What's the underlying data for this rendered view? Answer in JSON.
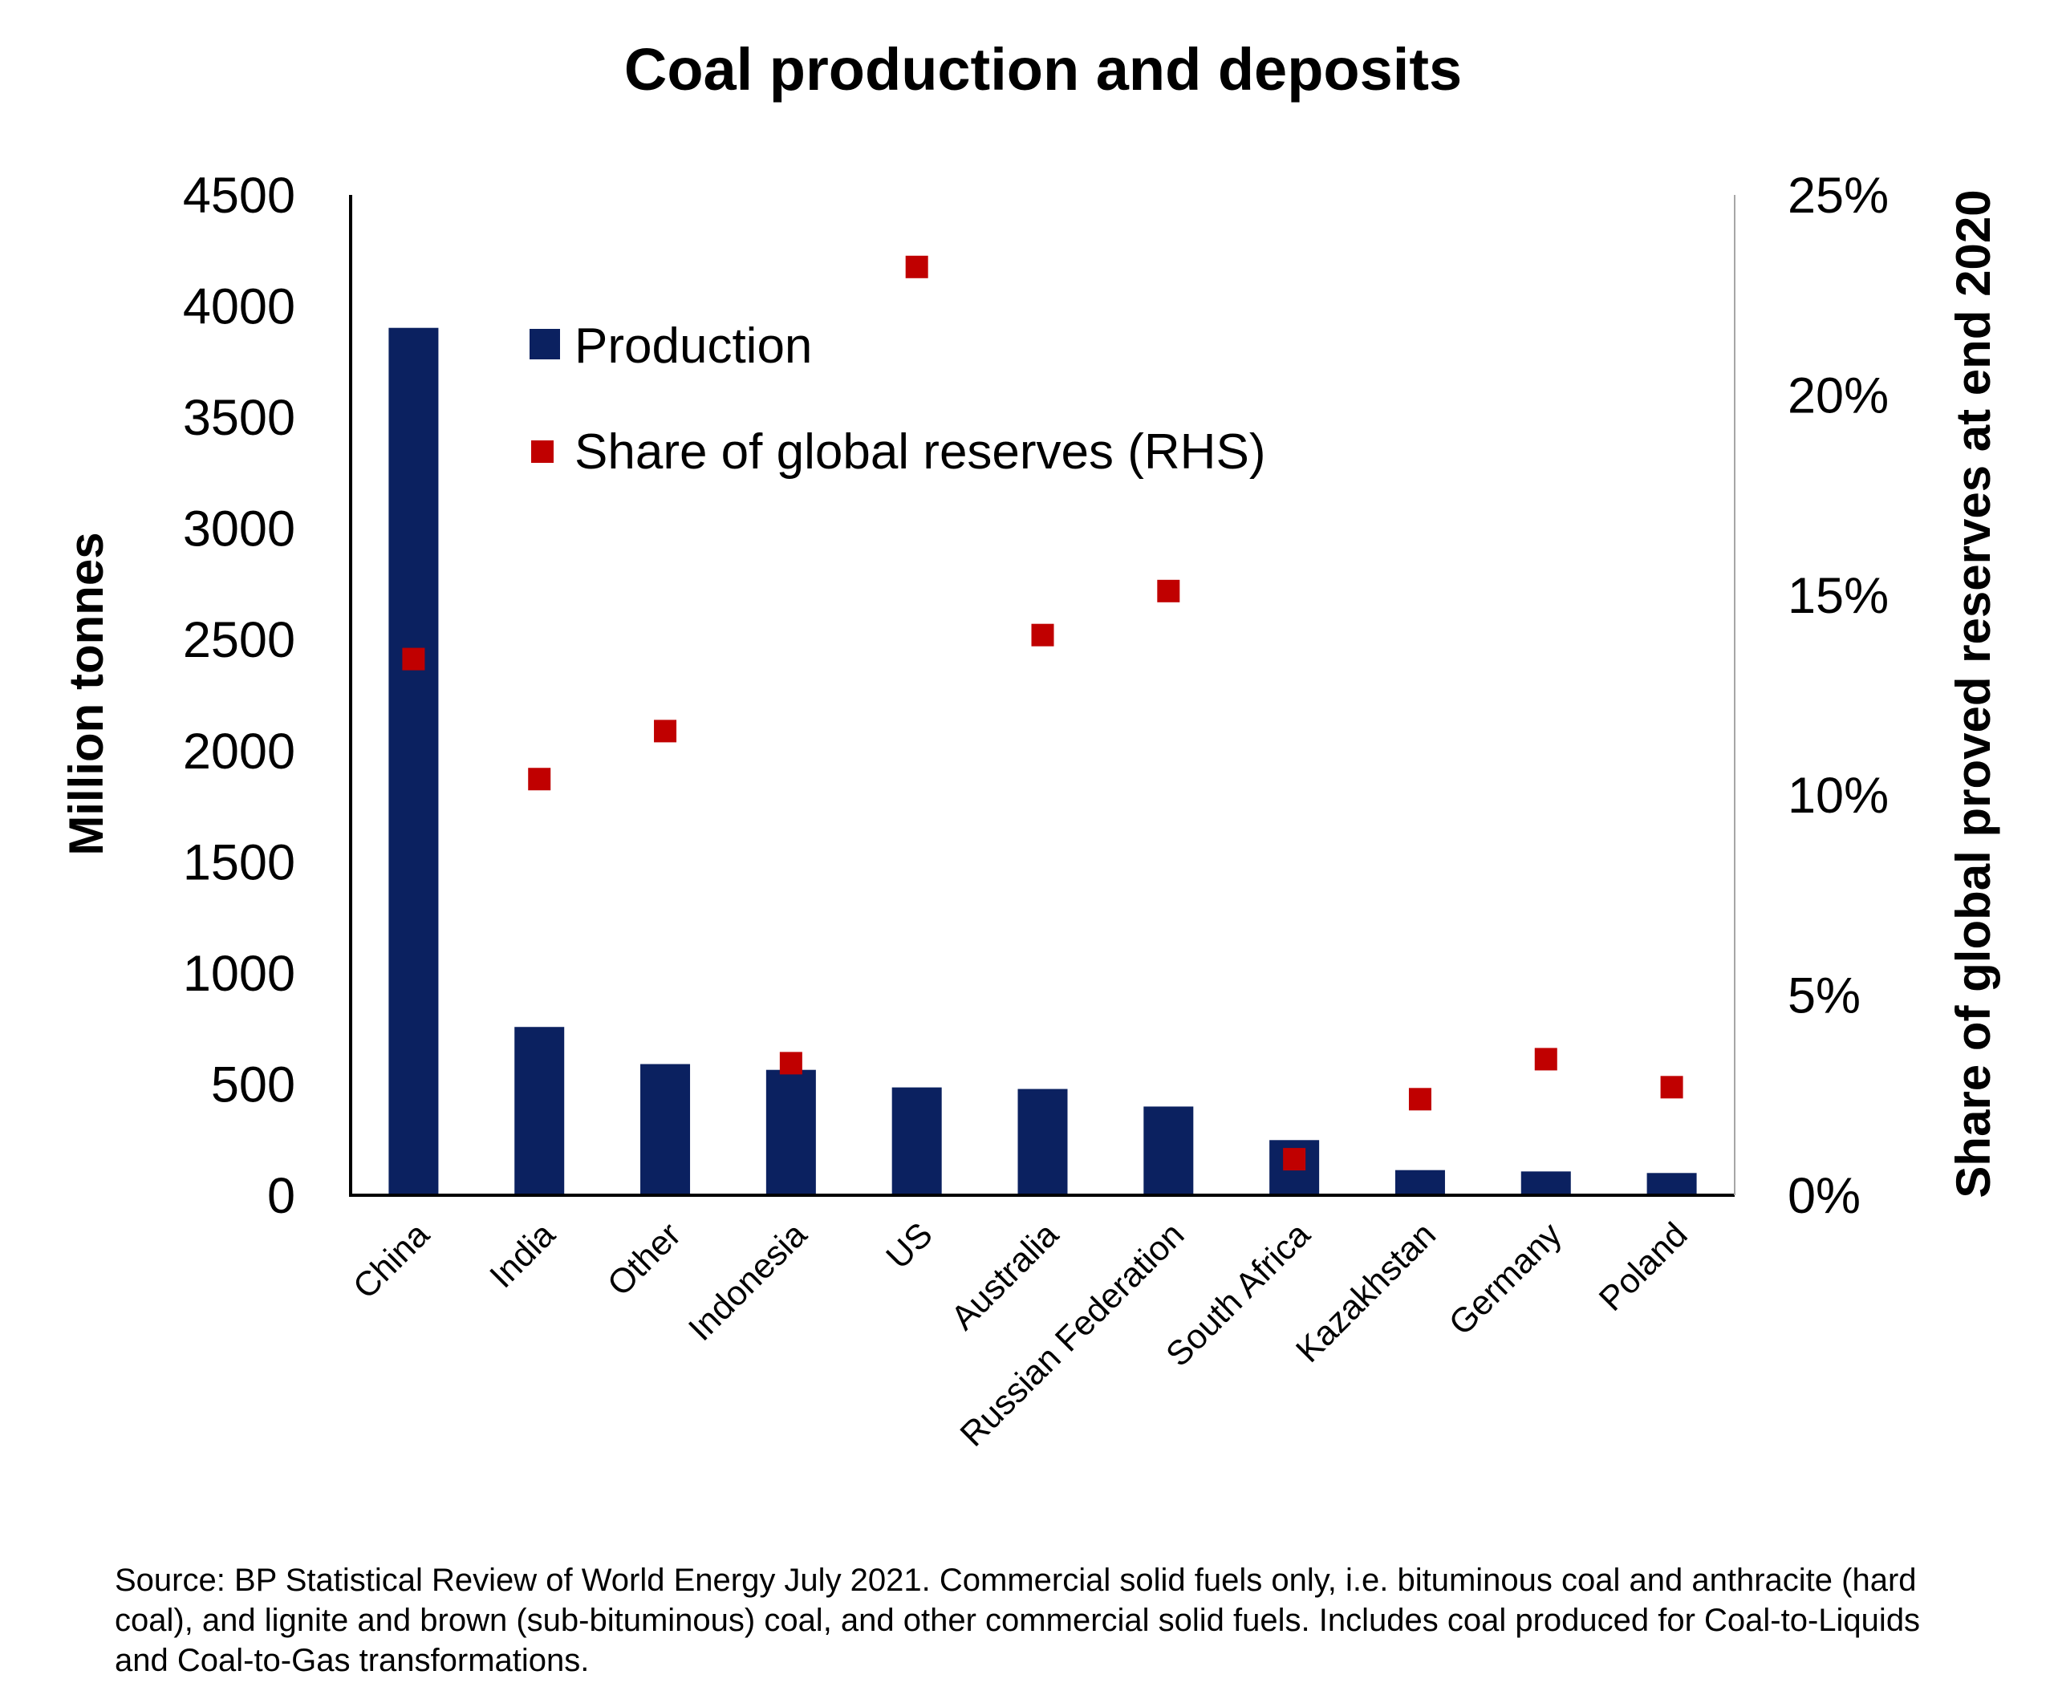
{
  "chart_data": {
    "type": "bar",
    "title": "Coal production and deposits",
    "categories": [
      "China",
      "India",
      "Other",
      "Indonesia",
      "US",
      "Australia",
      "Russian Federation",
      "South Africa",
      "Kazakhstan",
      "Germany",
      "Poland"
    ],
    "series": [
      {
        "name": "Production",
        "type": "bar",
        "axis": "left",
        "color": "#0B2160",
        "values": [
          3902,
          757,
          590,
          564,
          485,
          478,
          399,
          248,
          113,
          107,
          100
        ]
      },
      {
        "name": "Share of global reserves (RHS)",
        "type": "scatter",
        "axis": "right",
        "color": "#C00000",
        "values": [
          0.134,
          0.104,
          0.116,
          0.033,
          0.232,
          0.14,
          0.151,
          0.009,
          0.024,
          0.034,
          0.027
        ]
      }
    ],
    "ylabel": "Million tonnes",
    "ylim": [
      0,
      4500
    ],
    "yticks": [
      0,
      500,
      1000,
      1500,
      2000,
      2500,
      3000,
      3500,
      4000,
      4500
    ],
    "y2label": "Share of global proved reserves at end 2020",
    "y2lim": [
      0,
      0.25
    ],
    "y2ticks": [
      "0%",
      "5%",
      "10%",
      "15%",
      "20%",
      "25%"
    ],
    "legend_placement": "top-left inside plot",
    "grid": false
  },
  "footnote": "Source: BP Statistical Review of World Energy July 2021.  Commercial solid fuels only, i.e. bituminous coal and anthracite (hard coal), and lignite and brown (sub-bituminous) coal, and other commercial solid fuels. Includes coal produced for Coal-to-Liquids and Coal-to-Gas transformations."
}
